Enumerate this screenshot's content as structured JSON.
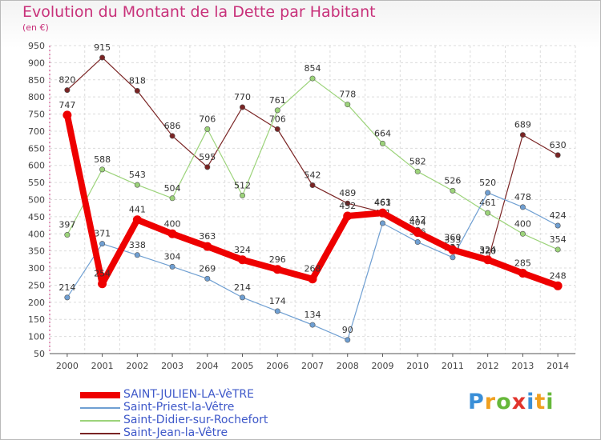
{
  "title": "Evolution du Montant de la Dette par Habitant",
  "subtitle": "(en €)",
  "logo": {
    "letters": [
      "P",
      "r",
      "o",
      "x",
      "i",
      "t",
      "i"
    ],
    "colors": [
      "#3a8fd8",
      "#f0a020",
      "#66b83a",
      "#e2342c",
      "#3a8fd8",
      "#f0a020",
      "#66b83a"
    ]
  },
  "chart_data": {
    "type": "line",
    "categories": [
      "2000",
      "2001",
      "2002",
      "2003",
      "2004",
      "2005",
      "2006",
      "2007",
      "2008",
      "2009",
      "2010",
      "2011",
      "2012",
      "2013",
      "2014"
    ],
    "ylim": [
      50,
      950
    ],
    "yticks": [
      50,
      100,
      150,
      200,
      250,
      300,
      350,
      400,
      450,
      500,
      550,
      600,
      650,
      700,
      750,
      800,
      850,
      900,
      950
    ],
    "grid": true,
    "legend_position": "bottom-left",
    "series": [
      {
        "name": "Saint-Jean-la-Vêtre",
        "color": "#7a2424",
        "line_width": 1.2,
        "values": [
          820,
          915,
          818,
          686,
          595,
          770,
          706,
          542,
          489,
          463,
          412,
          360,
          320,
          689,
          630
        ]
      },
      {
        "name": "Saint-Didier-sur-Rochefort",
        "color": "#9cd37a",
        "line_width": 1.2,
        "values": [
          397,
          588,
          543,
          504,
          706,
          512,
          761,
          854,
          778,
          664,
          582,
          526,
          461,
          400,
          354
        ]
      },
      {
        "name": "Saint-Priest-la-Vêtre",
        "color": "#6f9fd2",
        "line_width": 1.2,
        "values": [
          214,
          371,
          338,
          304,
          269,
          214,
          174,
          134,
          90,
          431,
          376,
          331,
          520,
          478,
          424
        ]
      },
      {
        "name": "SAINT-JULIEN-LA-VèTRE",
        "color": "#ee0000",
        "line_width": 8,
        "values": [
          747,
          254,
          441,
          400,
          363,
          324,
          296,
          268,
          452,
          461,
          404,
          353,
          324,
          285,
          248
        ]
      }
    ]
  }
}
